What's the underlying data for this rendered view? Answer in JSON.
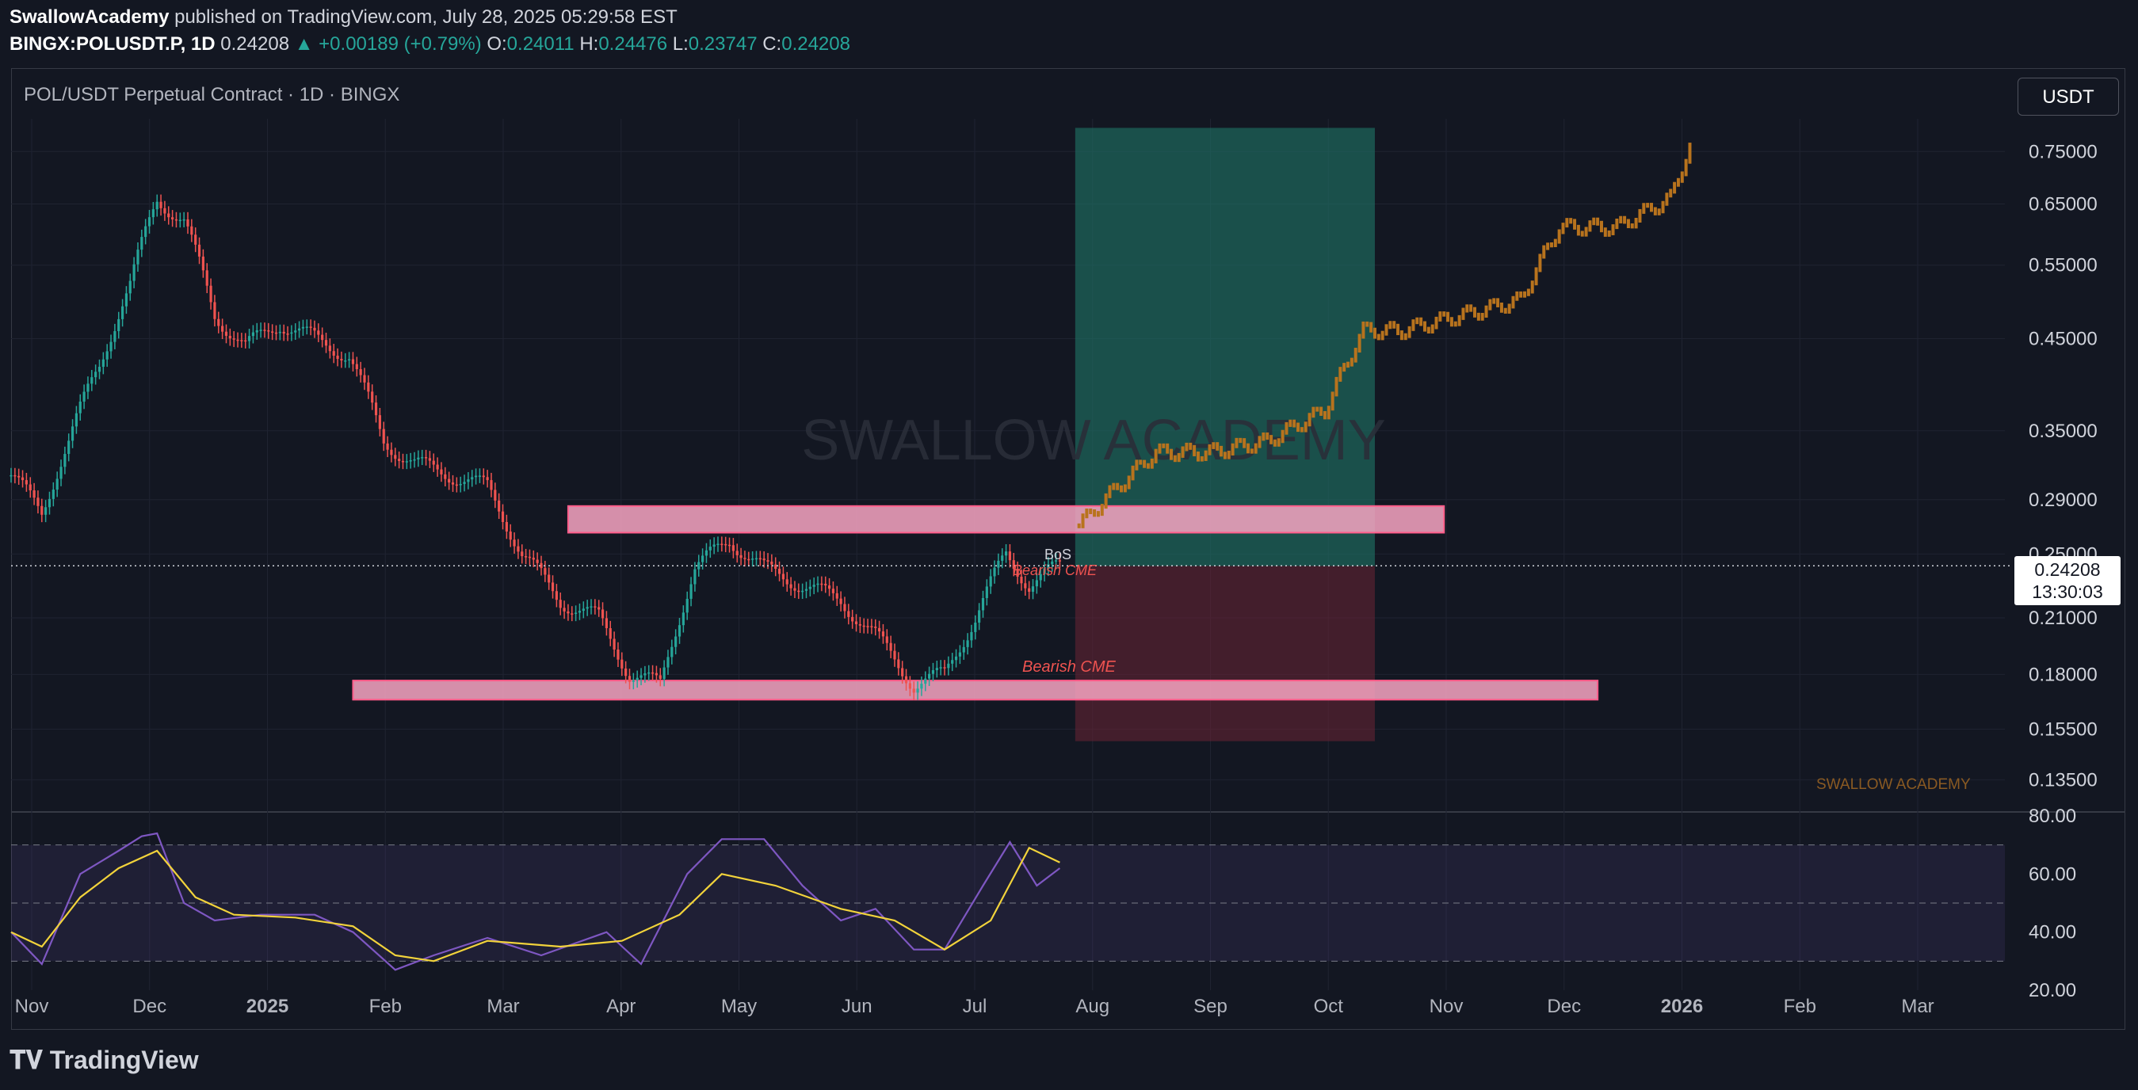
{
  "header": {
    "author": "SwallowAcademy",
    "published": "published on TradingView.com, July 28, 2025 05:29:58 EST"
  },
  "ohlc": {
    "symbol": "BINGX:POLUSDT.P, 1D",
    "last": "0.24208",
    "change": "+0.00189 (+0.79%)",
    "o_label": "O:",
    "o": "0.24011",
    "h_label": "H:",
    "h": "0.24476",
    "l_label": "L:",
    "l": "0.23747",
    "c_label": "C:",
    "c": "0.24208"
  },
  "chart": {
    "pair_title": "POL/USDT Perpetual Contract · 1D · BINGX",
    "currency_button": "USDT",
    "price_tag_value": "0.24208",
    "price_tag_timer": "13:30:03",
    "watermark_big": "SWALLOW ACADEMY",
    "watermark_small": "SWALLOW ACADEMY",
    "annotation_bos": "BoS",
    "annotation_bearish_cme_upper": "Bearish CME",
    "annotation_bearish_cme_lower": "Bearish CME"
  },
  "brand": {
    "logo_text": "TradingView"
  },
  "colors": {
    "up": "#26a69a",
    "down": "#ef5350",
    "projection": "#b8731d",
    "zone": "#f8a5c2",
    "take_profit": "#1e6f62",
    "stop_loss": "#6b2535",
    "rsi": "#7e57c2",
    "rsi_ma": "#f2d33b"
  },
  "chart_data": [
    {
      "type": "candlestick",
      "title": "POL/USDT Perpetual Contract · 1D · BINGX",
      "y_scale": "log",
      "ylim": [
        0.125,
        0.82
      ],
      "y_ticks": [
        "0.75000",
        "0.65000",
        "0.55000",
        "0.45000",
        "0.35000",
        "0.29000",
        "0.25000",
        "0.21000",
        "0.18000",
        "0.15500",
        "0.13500"
      ],
      "x_ticks": [
        "Nov",
        "Dec",
        "2025",
        "Feb",
        "Mar",
        "Apr",
        "May",
        "Jun",
        "Jul",
        "Aug",
        "Sep",
        "Oct",
        "Nov",
        "Dec",
        "2026",
        "Feb",
        "Mar"
      ],
      "x_range": [
        "2024-10-28",
        "2026-03-31"
      ],
      "series": [
        {
          "name": "price",
          "x": [
            "2024-10-28",
            "2024-11-05",
            "2024-11-12",
            "2024-11-20",
            "2024-11-28",
            "2024-12-05",
            "2024-12-12",
            "2024-12-20",
            "2024-12-28",
            "2025-01-06",
            "2025-01-15",
            "2025-01-24",
            "2025-02-02",
            "2025-02-10",
            "2025-02-20",
            "2025-03-01",
            "2025-03-10",
            "2025-03-20",
            "2025-03-30",
            "2025-04-07",
            "2025-04-15",
            "2025-04-24",
            "2025-05-03",
            "2025-05-12",
            "2025-05-22",
            "2025-06-01",
            "2025-06-10",
            "2025-06-20",
            "2025-06-28",
            "2025-07-06",
            "2025-07-14",
            "2025-07-20",
            "2025-07-28"
          ],
          "values": [
            0.31,
            0.28,
            0.34,
            0.42,
            0.52,
            0.66,
            0.62,
            0.48,
            0.44,
            0.47,
            0.45,
            0.43,
            0.34,
            0.32,
            0.31,
            0.3,
            0.25,
            0.22,
            0.21,
            0.18,
            0.175,
            0.24,
            0.26,
            0.24,
            0.23,
            0.22,
            0.2,
            0.175,
            0.18,
            0.21,
            0.25,
            0.23,
            0.242
          ]
        },
        {
          "name": "projection",
          "x": [
            "2025-08-02",
            "2025-08-12",
            "2025-08-22",
            "2025-09-05",
            "2025-09-20",
            "2025-10-05",
            "2025-10-15",
            "2025-10-25",
            "2025-11-10",
            "2025-11-25",
            "2025-12-05",
            "2025-12-20",
            "2026-01-03",
            "2026-01-08"
          ],
          "values": [
            0.27,
            0.3,
            0.33,
            0.33,
            0.34,
            0.37,
            0.46,
            0.46,
            0.48,
            0.5,
            0.61,
            0.61,
            0.66,
            0.76
          ]
        }
      ],
      "zones": [
        {
          "low": 0.265,
          "high": 0.285,
          "from": "2025-03-22",
          "to": "2025-11-05"
        },
        {
          "low": 0.168,
          "high": 0.177,
          "from": "2025-01-25",
          "to": "2025-12-15"
        }
      ],
      "position": {
        "entry": 0.242,
        "target": 0.8,
        "stop": 0.15,
        "from": "2025-08-01",
        "to": "2025-10-18"
      },
      "last_price": 0.24208
    },
    {
      "type": "line",
      "title": "RSI",
      "ylim": [
        20,
        80
      ],
      "y_ticks": [
        "80.00",
        "60.00",
        "40.00",
        "20.00"
      ],
      "bands": [
        30,
        50,
        70
      ],
      "x_range": [
        "2024-10-28",
        "2026-03-31"
      ],
      "series": [
        {
          "name": "rsi",
          "x": [
            "2024-10-28",
            "2024-11-05",
            "2024-11-15",
            "2024-11-25",
            "2024-12-01",
            "2024-12-05",
            "2024-12-12",
            "2024-12-20",
            "2025-01-01",
            "2025-01-15",
            "2025-01-25",
            "2025-02-05",
            "2025-02-15",
            "2025-03-01",
            "2025-03-15",
            "2025-04-01",
            "2025-04-10",
            "2025-04-22",
            "2025-05-01",
            "2025-05-12",
            "2025-05-22",
            "2025-06-01",
            "2025-06-10",
            "2025-06-20",
            "2025-06-28",
            "2025-07-08",
            "2025-07-15",
            "2025-07-22",
            "2025-07-28"
          ],
          "values": [
            40,
            29,
            60,
            68,
            73,
            74,
            50,
            44,
            46,
            46,
            40,
            27,
            32,
            38,
            32,
            40,
            29,
            60,
            72,
            72,
            56,
            44,
            48,
            34,
            34,
            56,
            71,
            56,
            62
          ]
        },
        {
          "name": "rsi_ma",
          "x": [
            "2024-10-28",
            "2024-11-05",
            "2024-11-15",
            "2024-11-25",
            "2024-12-05",
            "2024-12-15",
            "2024-12-25",
            "2025-01-10",
            "2025-01-25",
            "2025-02-05",
            "2025-02-15",
            "2025-03-01",
            "2025-03-20",
            "2025-04-05",
            "2025-04-20",
            "2025-05-01",
            "2025-05-15",
            "2025-06-01",
            "2025-06-15",
            "2025-06-28",
            "2025-07-10",
            "2025-07-20",
            "2025-07-28"
          ],
          "values": [
            40,
            35,
            52,
            62,
            68,
            52,
            46,
            45,
            42,
            32,
            30,
            37,
            35,
            37,
            46,
            60,
            56,
            48,
            44,
            34,
            44,
            69,
            64
          ]
        }
      ]
    }
  ]
}
